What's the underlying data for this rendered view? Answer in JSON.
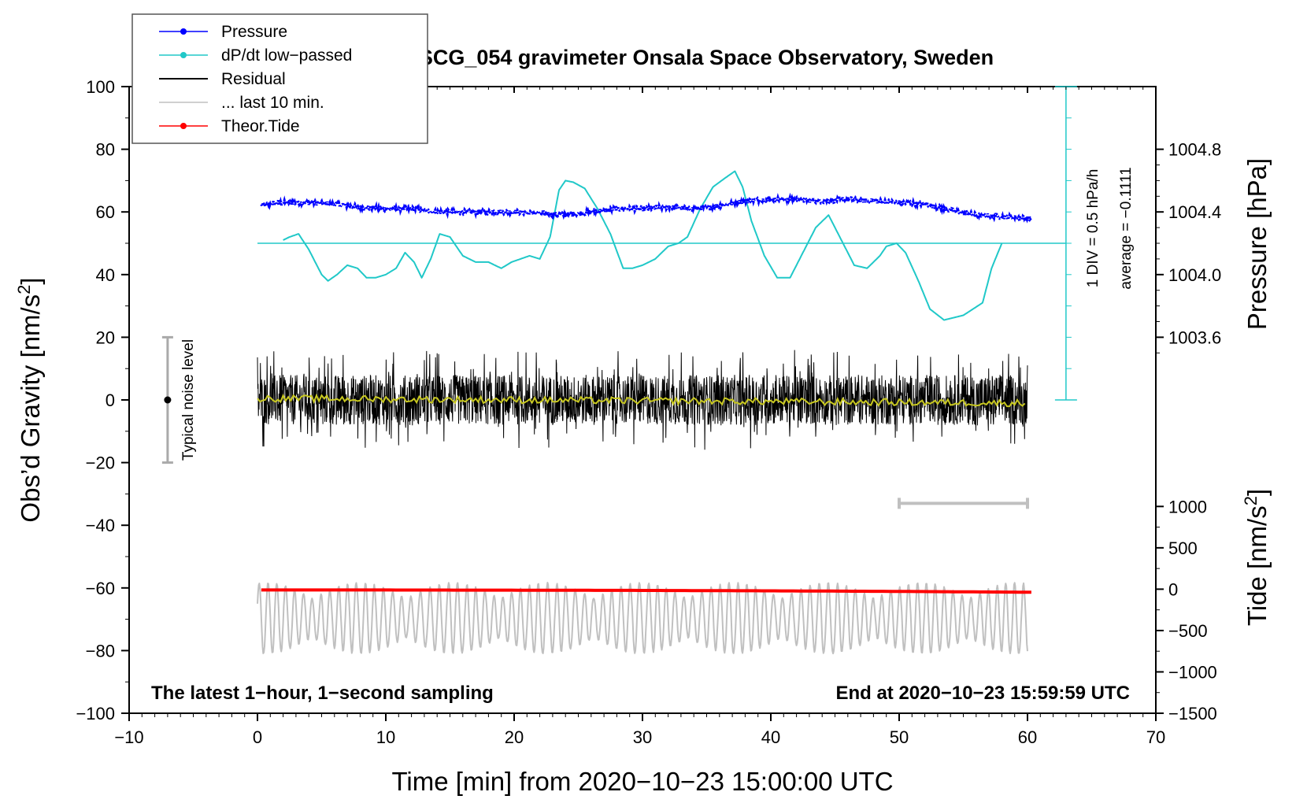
{
  "chart_data": {
    "type": "line",
    "title": "SCG_054 gravimeter Onsala Space Observatory, Sweden",
    "xlabel": "Time [min] from 2020−10−23 15:00:00 UTC",
    "ylabel_left": "Obs’d Gravity [nm/s",
    "ylabel_left_sup": "2",
    "ylabel_left_close": "]",
    "ylabel_right_pressure": "Pressure [hPa]",
    "ylabel_right_tide": "Tide [nm/s",
    "ylabel_right_tide_sup": "2",
    "ylabel_right_tide_close": "]",
    "xlim": [
      -10,
      70
    ],
    "ylim": [
      -100,
      100
    ],
    "x_ticks": [
      -10,
      0,
      10,
      20,
      30,
      40,
      50,
      60,
      70
    ],
    "x_tick_labels": [
      "−10",
      "0",
      "10",
      "20",
      "30",
      "40",
      "50",
      "60",
      "70"
    ],
    "y_ticks": [
      -100,
      -80,
      -60,
      -40,
      -20,
      0,
      20,
      40,
      60,
      80,
      100
    ],
    "y_tick_labels": [
      "−100",
      "−80",
      "−60",
      "−40",
      "−20",
      "0",
      "20",
      "40",
      "60",
      "80",
      "100"
    ],
    "pressure_axis": {
      "ticks": [
        1003.6,
        1004.0,
        1004.4,
        1004.8
      ],
      "labels": [
        "1003.6",
        "1004.0",
        "1004.4",
        "1004.8"
      ],
      "mapping": {
        "value_a": 1003.6,
        "gravity_a": 20,
        "value_b": 1004.8,
        "gravity_b": 80
      }
    },
    "tide_axis": {
      "ticks": [
        -1500,
        -1000,
        -500,
        0,
        500,
        1000
      ],
      "labels": [
        "−1500",
        "−1000",
        "−500",
        "0",
        "500",
        "1000"
      ],
      "mapping": {
        "value_a": -1500,
        "gravity_a": -100,
        "value_b": 1000,
        "gravity_b": -34
      }
    },
    "legend": [
      {
        "label": "Pressure",
        "color": "#0000ff",
        "marker": true
      },
      {
        "label": "dP/dt low−passed",
        "color": "#20c8c8",
        "marker": true
      },
      {
        "label": "Residual",
        "color": "#000000",
        "marker": false
      },
      {
        "label": "... last 10 min.",
        "color": "#c0c0c0",
        "marker": false
      },
      {
        "label": "Theor.Tide",
        "color": "#ff0000",
        "marker": true
      }
    ],
    "series": [
      {
        "name": "Pressure",
        "color": "#0000ff",
        "axis": "pressure_hPa",
        "x": [
          0,
          2,
          4,
          6,
          8,
          10,
          12,
          14,
          16,
          18,
          20,
          22,
          24,
          26,
          28,
          30,
          32,
          34,
          36,
          38,
          40,
          42,
          44,
          46,
          48,
          50,
          52,
          54,
          56,
          58,
          60
        ],
        "values": [
          1004.44,
          1004.46,
          1004.46,
          1004.45,
          1004.43,
          1004.42,
          1004.42,
          1004.4,
          1004.4,
          1004.4,
          1004.4,
          1004.39,
          1004.38,
          1004.4,
          1004.42,
          1004.42,
          1004.43,
          1004.42,
          1004.44,
          1004.47,
          1004.48,
          1004.48,
          1004.47,
          1004.48,
          1004.47,
          1004.46,
          1004.45,
          1004.41,
          1004.38,
          1004.37,
          1004.36
        ]
      },
      {
        "name": "dP/dt low−passed",
        "color": "#20c8c8",
        "axis": "gravity",
        "x": [
          2,
          2.5,
          3.2,
          4,
          5,
          5.5,
          6.2,
          7,
          7.8,
          8.5,
          9.2,
          10,
          10.8,
          11.5,
          12.2,
          12.8,
          13.5,
          14.2,
          15,
          16,
          17,
          18,
          19,
          19.8,
          20.5,
          21.2,
          22,
          22.8,
          23.5,
          24,
          24.6,
          25.5,
          26.5,
          27.5,
          28.5,
          29.2,
          30,
          31,
          32,
          32.8,
          33.5,
          34.5,
          35.5,
          36.5,
          37.2,
          37.8,
          38.5,
          39.5,
          40.5,
          41.5,
          42.5,
          43.5,
          44.5,
          45.5,
          46.5,
          47.5,
          48.5,
          49,
          49.8,
          50.5,
          51.5,
          52.4,
          53.5,
          55,
          56.5,
          57.2,
          58
        ],
        "values": [
          51,
          52,
          53,
          48,
          40,
          38,
          40,
          43,
          42,
          39,
          39,
          40,
          42,
          47,
          44,
          39,
          45,
          53,
          52,
          46,
          44,
          44,
          42,
          44,
          45,
          46,
          45,
          52,
          67,
          70,
          69.5,
          67.5,
          61,
          53,
          42,
          42,
          43,
          45,
          49,
          50,
          52,
          61,
          68,
          71,
          73,
          68,
          57,
          46,
          39,
          39,
          47,
          55,
          59,
          51,
          43,
          42,
          46,
          49,
          50,
          47,
          38,
          29,
          25.5,
          27,
          31,
          42,
          50
        ]
      },
      {
        "name": "Residual",
        "color": "#000000",
        "axis": "gravity",
        "description_range": [
          -15,
          15
        ],
        "x": [
          0,
          60
        ],
        "values": [
          0,
          0
        ]
      },
      {
        "name": "Residual running mean",
        "color": "#c8c820",
        "axis": "gravity",
        "x": [
          0,
          60
        ],
        "values": [
          0.5,
          -1
        ]
      },
      {
        "name": "... last 10 min.",
        "color": "#c0c0c0",
        "axis": "tide_nm_s2",
        "x": [
          0,
          60
        ],
        "range": [
          -800,
          150
        ],
        "values": [
          -350,
          -350
        ]
      },
      {
        "name": "Theor.Tide",
        "color": "#ff0000",
        "axis": "tide_nm_s2",
        "x": [
          0,
          10,
          20,
          30,
          40,
          50,
          60.3
        ],
        "values": [
          -10,
          -10,
          -12,
          -15,
          -20,
          -27,
          -37
        ]
      }
    ],
    "annotations": {
      "noise_label": "Typical noise level",
      "noise_range": [
        -20,
        20
      ],
      "noise_x": -7,
      "scale_bar_label": "1 DIV = 0.5 hPa/h",
      "average_label": "average = −0.1111",
      "scale_bar_x": 63,
      "scale_bar_range": [
        0,
        100
      ],
      "scale_baseline": 50,
      "last10_bar_x": [
        50,
        60
      ],
      "last10_bar_y": -33,
      "footer_left": "The latest 1−hour, 1−second sampling",
      "footer_right": "End at 2020−10−23 15:59:59 UTC"
    }
  }
}
